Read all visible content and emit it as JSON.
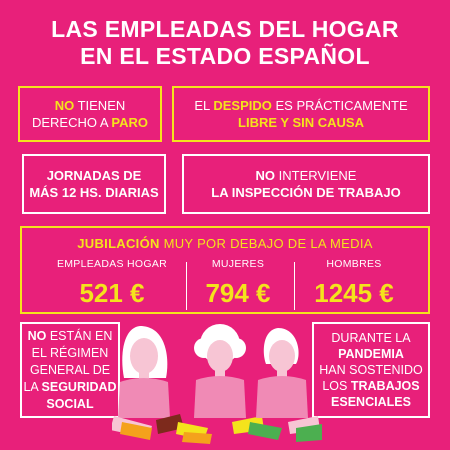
{
  "title": {
    "line1": "LAS EMPLEADAS DEL HOGAR",
    "line2": "EN EL ESTADO ESPAÑOL"
  },
  "boxes": {
    "paro": {
      "strong": "NO",
      "rest": " TIENEN",
      "line2_pre": "DERECHO A ",
      "line2_strong": "PARO"
    },
    "despido": {
      "pre": "EL ",
      "strong": "DESPIDO",
      "post": " ES PRÁCTICAMENTE",
      "line2": "LIBRE Y SIN CAUSA"
    },
    "jornadas": {
      "line1": "JORNADAS DE",
      "line2": "MÁS 12 Hs. DIARIAS"
    },
    "inspeccion": {
      "strong": "NO",
      "rest": " INTERVIENE",
      "line2": "LA INSPECCIÓN DE TRABAJO"
    },
    "seguridad": {
      "l1_strong": "NO",
      "l1_rest": " ESTÁN EN",
      "l2": "EL RÉGIMEN",
      "l3": "GENERAL DE",
      "l4_pre": "LA ",
      "l4_strong": "SEGURIDAD",
      "l5": "SOCIAL"
    },
    "pandemia": {
      "l1": "DURANTE LA",
      "l2": "PANDEMIA",
      "l3": "HAN SOSTENIDO",
      "l4_pre": "LOS ",
      "l4_strong": "TRABAJOS",
      "l5": "ESENCIALES"
    }
  },
  "jubilacion": {
    "strong": "JUBILACIÓN",
    "rest": " MUY POR DEBAJO DE LA MEDIA",
    "columns": [
      {
        "label": "EMPLEADAS HOGAR",
        "value": "521 €"
      },
      {
        "label": "MUJERES",
        "value": "794 €"
      },
      {
        "label": "HOMBRES",
        "value": "1245 €"
      }
    ]
  },
  "colors": {
    "background": "#e8207a",
    "accent": "#f4e31c",
    "figure_skin": "#f7c5d4",
    "figure_top": "#f08ab5",
    "figure_hair": "#ffffff"
  }
}
